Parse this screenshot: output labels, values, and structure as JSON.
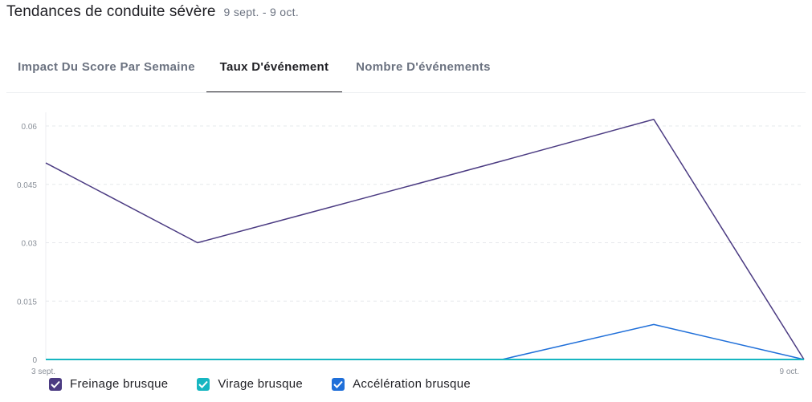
{
  "header": {
    "title": "Tendances de conduite sévère",
    "date_range": "9 sept. - 9 oct."
  },
  "tabs": [
    {
      "label": "Impact Du Score Par Semaine",
      "active": false
    },
    {
      "label": "Taux D'événement",
      "active": true
    },
    {
      "label": "Nombre D'événements",
      "active": false
    }
  ],
  "chart_data": {
    "type": "line",
    "x_labels": [
      "3 sept.",
      "",
      "",
      "",
      "",
      "9 oct."
    ],
    "x_tick_labels": [
      "3 sept.",
      "9 oct."
    ],
    "ylim": [
      0,
      0.06
    ],
    "y_ticks": [
      "0",
      "0.015",
      "0.03",
      "0.045",
      "0.06"
    ],
    "grid": true,
    "legend_position": "bottom-left",
    "series": [
      {
        "name": "Freinage brusque",
        "color": "#4b3b82",
        "values": [
          0.0505,
          0.03,
          0.0405,
          0.051,
          0.0617,
          0
        ]
      },
      {
        "name": "Virage brusque",
        "color": "#17b6c1",
        "values": [
          0,
          0,
          0,
          0,
          0,
          0
        ]
      },
      {
        "name": "Accélération brusque",
        "color": "#1f6fd9",
        "values": [
          0,
          0,
          0,
          0,
          0.009,
          0
        ]
      }
    ]
  },
  "legend": {
    "items": [
      {
        "label": "Freinage brusque",
        "color": "#4b3b82",
        "checked": true
      },
      {
        "label": "Virage brusque",
        "color": "#17b6c1",
        "checked": true
      },
      {
        "label": "Accélération brusque",
        "color": "#1f6fd9",
        "checked": true
      }
    ]
  }
}
